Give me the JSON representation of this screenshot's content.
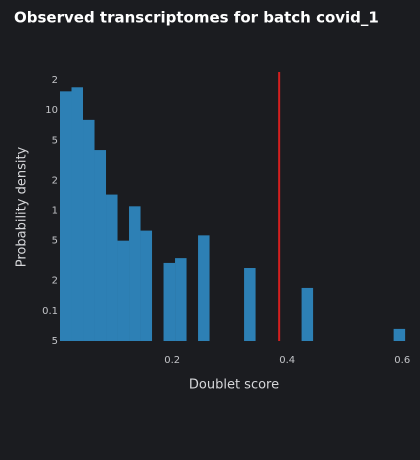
{
  "chart_data": {
    "type": "histogram",
    "title": "Observed transcriptomes for batch covid_1",
    "x_label": "Doublet score",
    "y_label": "Probability density",
    "bins": [
      0.005,
      0.025,
      0.045,
      0.065,
      0.085,
      0.105,
      0.125,
      0.145,
      0.165,
      0.185,
      0.205,
      0.225,
      0.245,
      0.265,
      0.285,
      0.305,
      0.325,
      0.345,
      0.365,
      0.385,
      0.405,
      0.425,
      0.445,
      0.465,
      0.485,
      0.505,
      0.525,
      0.545,
      0.565,
      0.585,
      0.605
    ],
    "values": [
      15.4,
      16.9,
      8.0,
      4.0,
      1.44,
      0.5,
      1.1,
      0.63,
      0,
      0.3,
      0.335,
      0,
      0.565,
      0,
      0,
      0,
      0.267,
      0,
      0,
      0,
      0,
      0.169,
      0,
      0,
      0,
      0,
      0,
      0,
      0,
      0.066
    ],
    "color": "#2d80b5",
    "threshold": 0.386,
    "threshold_color": "#d41f1f",
    "log_y": true,
    "xlim": [
      0.005,
      0.61
    ],
    "ylim": [
      0.05,
      24
    ],
    "xticks": [
      0.2,
      0.4,
      0.6
    ],
    "yticks": [
      {
        "value": 20,
        "label": "2"
      },
      10,
      5,
      2,
      1,
      {
        "value": 0.5,
        "label": "5"
      },
      {
        "value": 0.2,
        "label": "2"
      },
      0.1,
      {
        "value": 0.05,
        "label": "5"
      }
    ]
  }
}
